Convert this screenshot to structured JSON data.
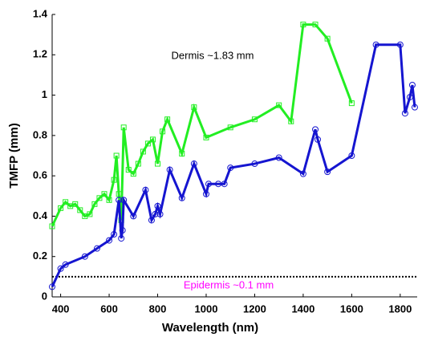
{
  "chart_data": {
    "type": "line",
    "x_label": "Wavelength (nm)",
    "y_label": "TMFP (mm)",
    "xlim": [
      365,
      1870
    ],
    "ylim": [
      0,
      1.4
    ],
    "xticks": [
      400,
      600,
      800,
      1000,
      1200,
      1400,
      1600,
      1800
    ],
    "yticks": [
      0,
      0.2,
      0.4,
      0.6,
      0.8,
      1,
      1.2,
      1.4
    ],
    "annotations": [
      {
        "text": "Dermis ~1.83 mm",
        "color": "#000000"
      },
      {
        "text": "Epidermis ~0.1 mm",
        "color": "#ff00ff"
      }
    ],
    "reference_line": {
      "value": 0.1,
      "color": "#000000"
    },
    "series": [
      {
        "name": "Dermis",
        "color": "#22ee22",
        "marker": "square",
        "x": [
          365,
          400,
          420,
          440,
          460,
          480,
          500,
          520,
          540,
          560,
          580,
          600,
          620,
          630,
          640,
          650,
          660,
          680,
          700,
          720,
          740,
          760,
          780,
          800,
          820,
          840,
          900,
          950,
          1000,
          1100,
          1200,
          1300,
          1350,
          1400,
          1450,
          1500,
          1600
        ],
        "values": [
          0.35,
          0.44,
          0.47,
          0.45,
          0.46,
          0.43,
          0.4,
          0.41,
          0.46,
          0.49,
          0.51,
          0.48,
          0.58,
          0.7,
          0.51,
          0.38,
          0.84,
          0.63,
          0.61,
          0.66,
          0.72,
          0.76,
          0.78,
          0.66,
          0.82,
          0.88,
          0.71,
          0.94,
          0.79,
          0.84,
          0.88,
          0.95,
          0.87,
          1.35,
          1.35,
          1.28,
          0.96
        ]
      },
      {
        "name": "Epidermis",
        "color": "#1515d0",
        "marker": "circle",
        "x": [
          365,
          400,
          420,
          500,
          550,
          600,
          620,
          640,
          650,
          655,
          660,
          700,
          750,
          775,
          790,
          800,
          810,
          850,
          900,
          950,
          1000,
          1010,
          1050,
          1075,
          1100,
          1200,
          1300,
          1400,
          1450,
          1460,
          1500,
          1600,
          1700,
          1800,
          1820,
          1840,
          1850,
          1860
        ],
        "values": [
          0.05,
          0.14,
          0.16,
          0.2,
          0.24,
          0.28,
          0.31,
          0.48,
          0.29,
          0.33,
          0.48,
          0.4,
          0.53,
          0.38,
          0.41,
          0.45,
          0.41,
          0.63,
          0.49,
          0.66,
          0.51,
          0.56,
          0.56,
          0.56,
          0.64,
          0.66,
          0.69,
          0.61,
          0.83,
          0.78,
          0.62,
          0.7,
          1.25,
          1.25,
          0.91,
          0.99,
          1.05,
          0.94
        ]
      }
    ]
  }
}
